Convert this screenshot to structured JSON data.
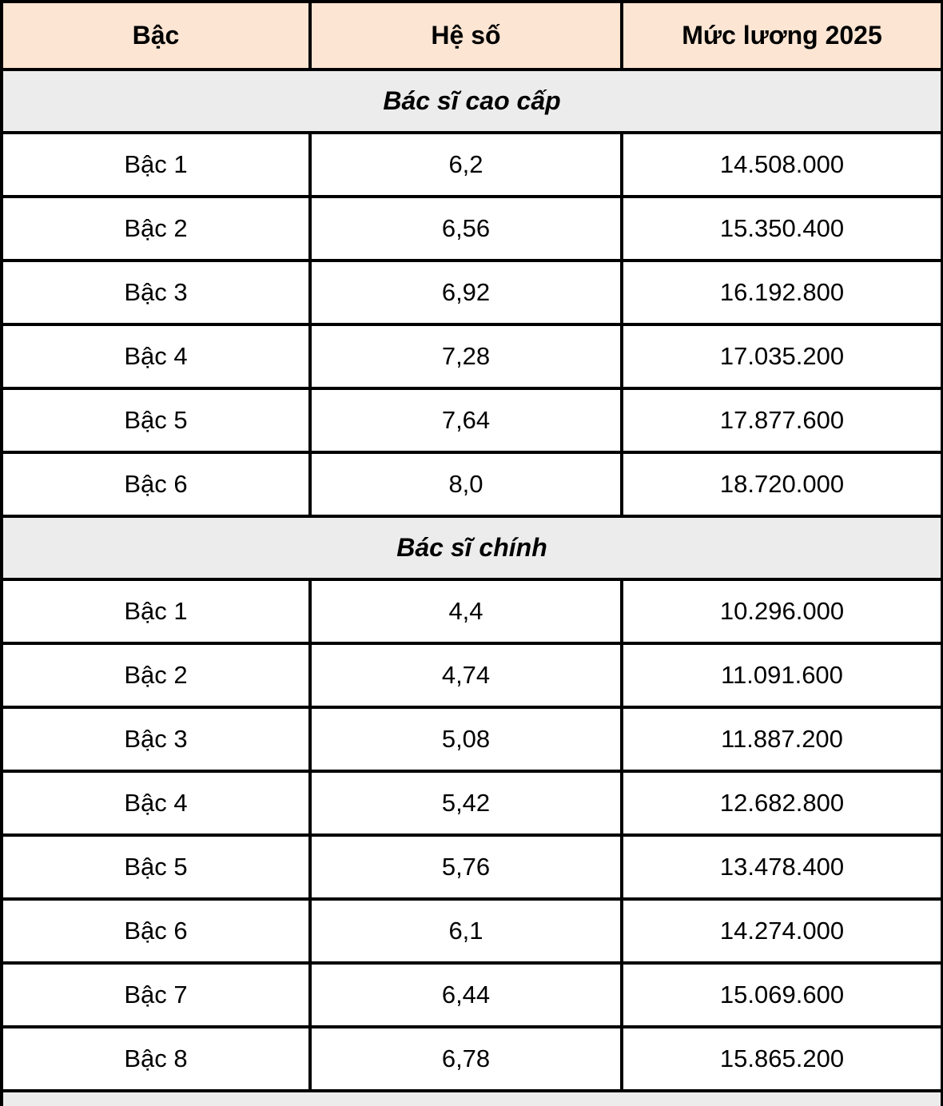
{
  "colors": {
    "header_background": "#fce5d3",
    "section_background": "#ececec",
    "border": "#000000",
    "text": "#000000",
    "row_background": "#ffffff"
  },
  "table": {
    "columns": [
      "Bậc",
      "Hệ số",
      "Mức lương 2025"
    ],
    "sections": [
      {
        "title": "Bác sĩ cao cấp",
        "rows": [
          [
            "Bậc 1",
            "6,2",
            "14.508.000"
          ],
          [
            "Bậc 2",
            "6,56",
            "15.350.400"
          ],
          [
            "Bậc 3",
            "6,92",
            "16.192.800"
          ],
          [
            "Bậc 4",
            "7,28",
            "17.035.200"
          ],
          [
            "Bậc 5",
            "7,64",
            "17.877.600"
          ],
          [
            "Bậc 6",
            "8,0",
            "18.720.000"
          ]
        ]
      },
      {
        "title": "Bác sĩ chính",
        "rows": [
          [
            "Bậc 1",
            "4,4",
            "10.296.000"
          ],
          [
            "Bậc 2",
            "4,74",
            "11.091.600"
          ],
          [
            "Bậc 3",
            "5,08",
            "11.887.200"
          ],
          [
            "Bậc 4",
            "5,42",
            "12.682.800"
          ],
          [
            "Bậc 5",
            "5,76",
            "13.478.400"
          ],
          [
            "Bậc 6",
            "6,1",
            "14.274.000"
          ],
          [
            "Bậc 7",
            "6,44",
            "15.069.600"
          ],
          [
            "Bậc 8",
            "6,78",
            "15.865.200"
          ]
        ]
      },
      {
        "title": "",
        "rows": [],
        "partial_cut_off_at_bottom": true
      }
    ]
  }
}
